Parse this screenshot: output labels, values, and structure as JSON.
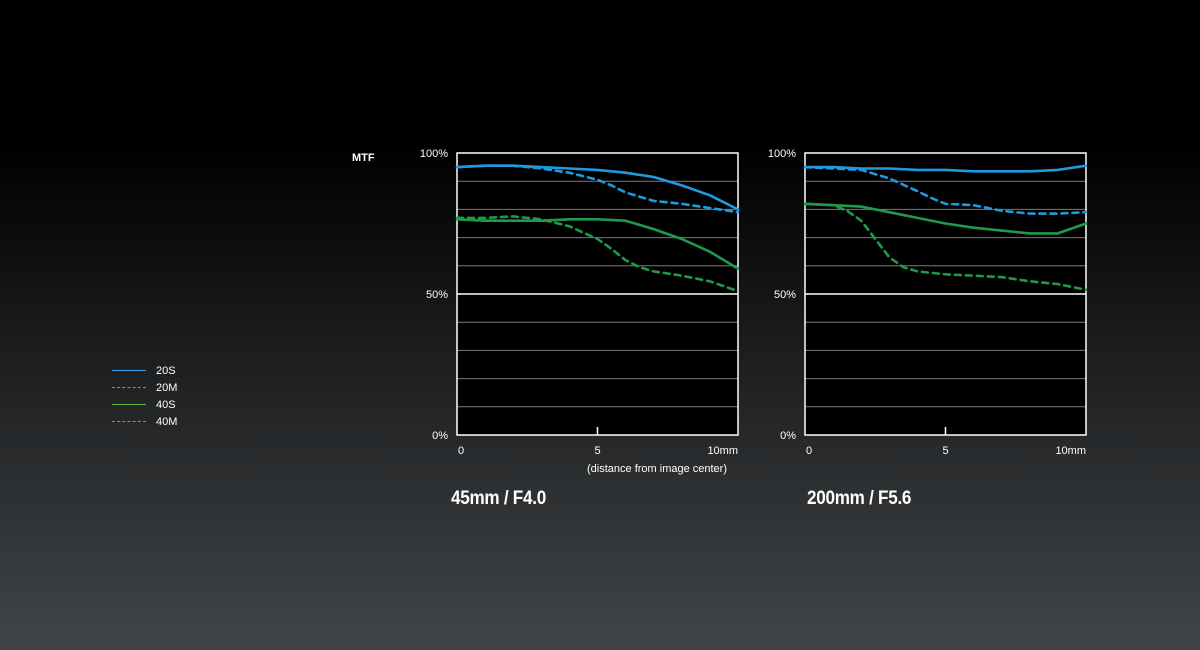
{
  "axis_label": "MTF",
  "x_axis_label": "(distance from image center)",
  "legend": [
    {
      "label": "20S",
      "color": "#35a7e6",
      "dash": "solid"
    },
    {
      "label": "20M",
      "color": "#35a7e6",
      "dash": "dashed"
    },
    {
      "label": "40S",
      "color": "#6bb031",
      "dash": "solid"
    },
    {
      "label": "40M",
      "color": "#6bb031",
      "dash": "dashed"
    }
  ],
  "colors": {
    "s20": "#1e9ae0",
    "s40": "#1f9a4a"
  },
  "chart_data": [
    {
      "type": "line",
      "title": "45mm / F4.0",
      "xlim": [
        0,
        10
      ],
      "ylim": [
        0,
        100
      ],
      "xticks": [
        "0",
        "5",
        "10mm"
      ],
      "yticks": [
        "0%",
        "50%",
        "100%"
      ],
      "grid": true,
      "series": [
        {
          "name": "20S",
          "x": [
            0,
            1,
            2,
            3,
            4,
            5,
            6,
            7,
            8,
            9,
            10
          ],
          "y": [
            95,
            95.5,
            95.5,
            95,
            94.5,
            94,
            93,
            91.5,
            88.5,
            85,
            80
          ]
        },
        {
          "name": "20M",
          "x": [
            0,
            1,
            2,
            3,
            4,
            5,
            5.5,
            6,
            7,
            8,
            9,
            10
          ],
          "y": [
            95,
            95.5,
            95.5,
            94.5,
            93,
            90.5,
            88.5,
            86,
            83,
            82,
            80.5,
            79
          ]
        },
        {
          "name": "40S",
          "x": [
            0,
            1,
            2,
            3,
            4,
            5,
            6,
            6.5,
            7,
            8,
            9,
            10
          ],
          "y": [
            76.5,
            76,
            76,
            76,
            76.5,
            76.5,
            76,
            74.5,
            73,
            69.5,
            65,
            59
          ]
        },
        {
          "name": "40M",
          "x": [
            0,
            1,
            2,
            3,
            4,
            5,
            5.5,
            6,
            6.5,
            7,
            8,
            9,
            10
          ],
          "y": [
            77,
            77,
            77.5,
            76.5,
            74,
            69.5,
            66,
            62,
            59.5,
            58,
            56.5,
            54.5,
            51
          ]
        }
      ]
    },
    {
      "type": "line",
      "title": "200mm / F5.6",
      "xlim": [
        0,
        10
      ],
      "ylim": [
        0,
        100
      ],
      "xticks": [
        "0",
        "5",
        "10mm"
      ],
      "yticks": [
        "0%",
        "50%",
        "100%"
      ],
      "grid": true,
      "series": [
        {
          "name": "20S",
          "x": [
            0,
            1,
            2,
            3,
            4,
            5,
            6,
            7,
            8,
            9,
            10
          ],
          "y": [
            95,
            95,
            94.5,
            94.5,
            94,
            94,
            93.5,
            93.5,
            93.5,
            94,
            95.5
          ]
        },
        {
          "name": "20M",
          "x": [
            0,
            1,
            2,
            3,
            4,
            4.5,
            5,
            6,
            7,
            8,
            9,
            10
          ],
          "y": [
            95,
            94.5,
            94,
            91,
            86.5,
            84,
            82,
            81.5,
            79.5,
            78.5,
            78.5,
            79
          ]
        },
        {
          "name": "40S",
          "x": [
            0,
            1,
            2,
            3,
            4,
            5,
            6,
            7,
            8,
            9,
            10
          ],
          "y": [
            82,
            81.5,
            81,
            79,
            77,
            75,
            73.5,
            72.5,
            71.5,
            71.5,
            75
          ]
        },
        {
          "name": "40M",
          "x": [
            0,
            1,
            1.5,
            2,
            2.5,
            3,
            3.5,
            4,
            5,
            6,
            7,
            8,
            9,
            10
          ],
          "y": [
            82,
            81.5,
            79.5,
            76,
            69.5,
            63,
            59.5,
            58,
            57,
            56.5,
            56,
            54.5,
            53.5,
            51.5
          ]
        }
      ]
    }
  ]
}
